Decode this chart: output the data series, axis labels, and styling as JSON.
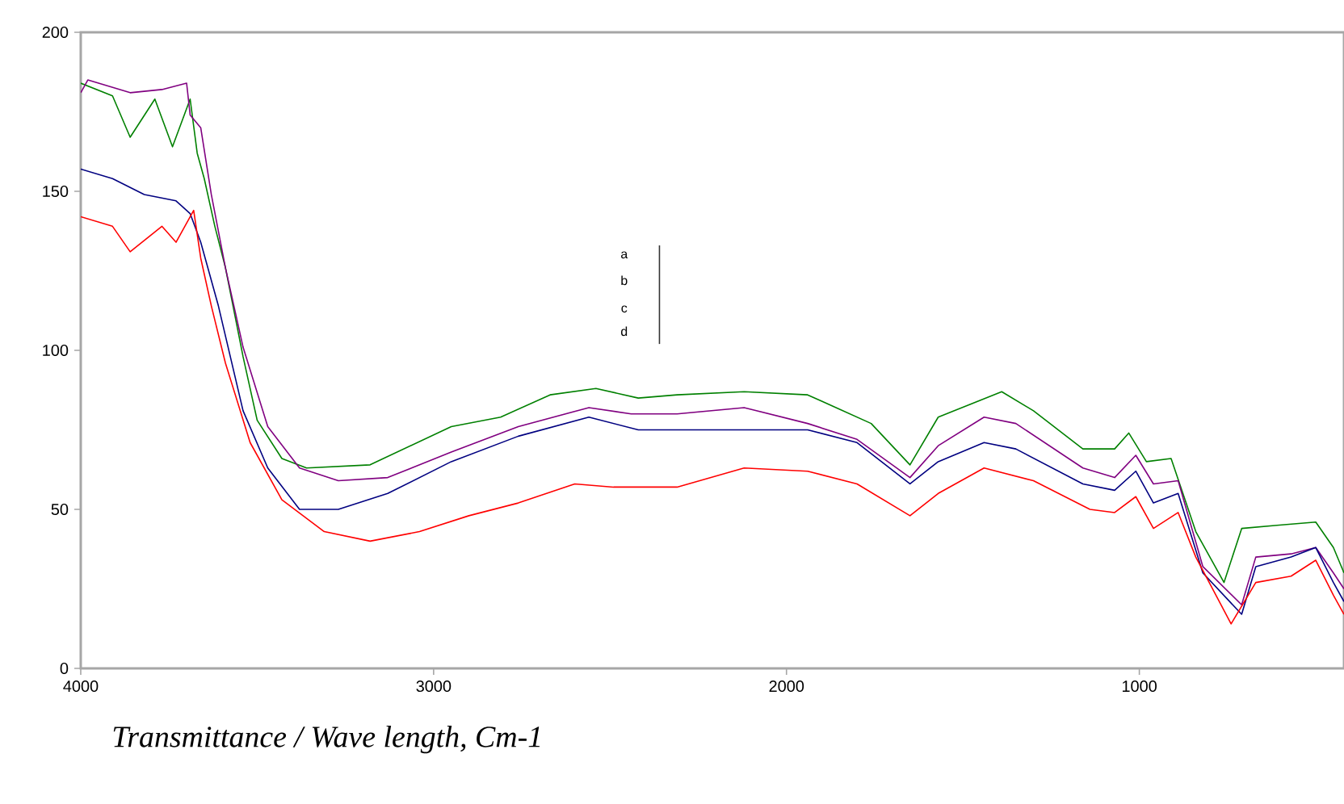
{
  "chart_data": {
    "type": "line",
    "xlabel": "Transmittance / Wave length, Cm-1",
    "xlim": [
      4000,
      420
    ],
    "xticks": [
      4000,
      3000,
      2000,
      1000
    ],
    "ylim": [
      0,
      200
    ],
    "yticks": [
      0,
      50,
      100,
      150,
      200
    ],
    "grid": false,
    "marker": "none",
    "line_style": "solid",
    "annotations": [
      "a",
      "b",
      "c",
      "d"
    ],
    "series": [
      {
        "color": "#008000",
        "x": [
          4000,
          3910,
          3860,
          3790,
          3740,
          3690,
          3670,
          3650,
          3620,
          3590,
          3540,
          3500,
          3430,
          3360,
          3180,
          2950,
          2810,
          2670,
          2540,
          2420,
          2310,
          2120,
          1940,
          1900,
          1760,
          1650,
          1570,
          1480,
          1390,
          1300,
          1160,
          1070,
          1030,
          980,
          910,
          840,
          760,
          710,
          610,
          500,
          450,
          420
        ],
        "values": [
          184,
          180,
          167,
          179,
          164,
          179,
          162,
          154,
          139,
          126,
          98,
          78,
          66,
          63,
          64,
          76,
          79,
          86,
          88,
          85,
          86,
          87,
          86,
          84,
          77,
          64,
          79,
          83,
          87,
          81,
          69,
          69,
          74,
          65,
          66,
          43,
          27,
          44,
          45,
          46,
          38,
          30
        ]
      },
      {
        "color": "#800080",
        "x": [
          4000,
          3980,
          3860,
          3770,
          3700,
          3690,
          3660,
          3630,
          3590,
          3540,
          3470,
          3380,
          3270,
          3130,
          2950,
          2760,
          2560,
          2440,
          2310,
          2120,
          1940,
          1800,
          1650,
          1570,
          1440,
          1350,
          1160,
          1070,
          1010,
          960,
          890,
          820,
          710,
          670,
          570,
          500,
          450,
          420
        ],
        "values": [
          181,
          185,
          181,
          182,
          184,
          174,
          170,
          149,
          126,
          101,
          76,
          63,
          59,
          60,
          68,
          76,
          82,
          80,
          80,
          82,
          77,
          72,
          60,
          70,
          79,
          77,
          63,
          60,
          67,
          58,
          59,
          32,
          20,
          35,
          36,
          38,
          30,
          25
        ]
      },
      {
        "color": "#000080",
        "x": [
          4000,
          3910,
          3820,
          3730,
          3690,
          3660,
          3610,
          3540,
          3470,
          3380,
          3270,
          3130,
          2950,
          2760,
          2560,
          2420,
          2260,
          1940,
          1800,
          1650,
          1570,
          1440,
          1350,
          1160,
          1070,
          1010,
          960,
          890,
          820,
          710,
          670,
          570,
          500,
          450,
          420
        ],
        "values": [
          157,
          154,
          149,
          147,
          143,
          134,
          114,
          81,
          63,
          50,
          50,
          55,
          65,
          73,
          79,
          75,
          75,
          75,
          71,
          58,
          65,
          71,
          69,
          58,
          56,
          62,
          52,
          55,
          30,
          17,
          32,
          35,
          38,
          27,
          21
        ]
      },
      {
        "color": "#333333",
        "x": [
          2360,
          2360
        ],
        "values": [
          133,
          102
        ]
      },
      {
        "color": "#ff0000",
        "x": [
          4000,
          3910,
          3860,
          3770,
          3730,
          3680,
          3660,
          3630,
          3590,
          3520,
          3430,
          3310,
          3180,
          3040,
          2900,
          2760,
          2600,
          2490,
          2310,
          2120,
          1940,
          1800,
          1650,
          1570,
          1440,
          1300,
          1140,
          1070,
          1010,
          960,
          890,
          840,
          740,
          670,
          570,
          500,
          450,
          420
        ],
        "values": [
          142,
          139,
          131,
          139,
          134,
          144,
          129,
          114,
          96,
          71,
          53,
          43,
          40,
          43,
          48,
          52,
          58,
          57,
          57,
          63,
          62,
          58,
          48,
          55,
          63,
          59,
          50,
          49,
          54,
          44,
          49,
          35,
          14,
          27,
          29,
          34,
          23,
          17
        ]
      }
    ]
  }
}
